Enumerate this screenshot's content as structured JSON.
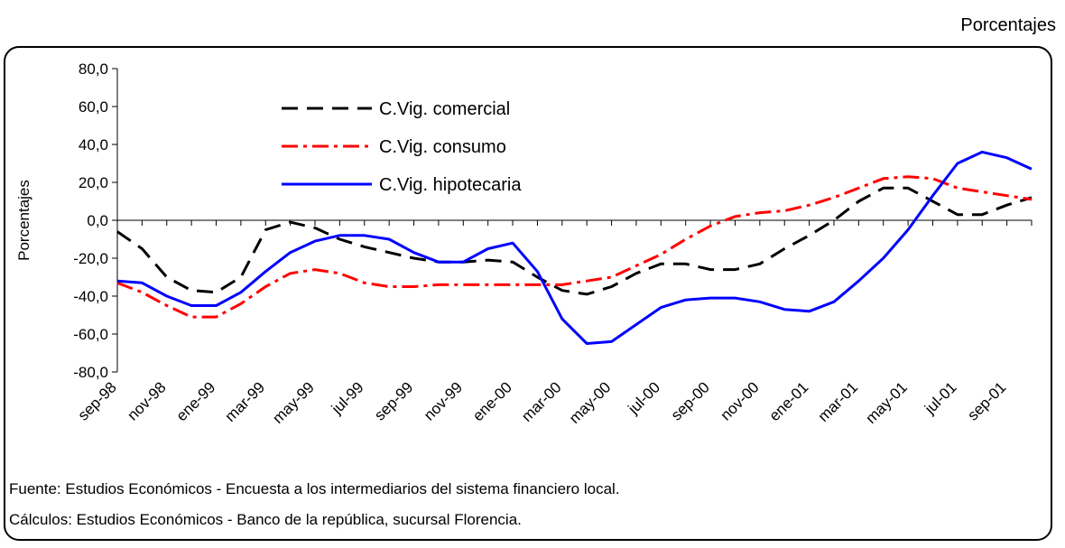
{
  "chart_data": {
    "type": "line",
    "unit_label": "Porcentajes",
    "y_label": "Porcentajes",
    "source": "Fuente:  Estudios Económicos - Encuesta a los intermediarios del sistema financiero local.",
    "calculations": "Cálculos:  Estudios Económicos - Banco de la república, sucursal Florencia.",
    "categories": [
      "sep-98",
      null,
      "nov-98",
      null,
      "ene-99",
      null,
      "mar-99",
      null,
      "may-99",
      null,
      "jul-99",
      null,
      "sep-99",
      null,
      "nov-99",
      null,
      "ene-00",
      null,
      "mar-00",
      null,
      "may-00",
      null,
      "jul-00",
      null,
      "sep-00",
      null,
      "nov-00",
      null,
      "ene-01",
      null,
      "mar-01",
      null,
      "may-01",
      null,
      "jul-01",
      null,
      "sep-01",
      null
    ],
    "series": [
      {
        "name": "C.Vig. comercial",
        "color": "#000000",
        "dash": "18 10",
        "values": [
          -6,
          -15,
          -30,
          -37,
          -38,
          -30,
          -5,
          -1,
          -4,
          -10,
          -14,
          -17,
          -20,
          -22,
          -22,
          -21,
          -22,
          -30,
          -37,
          -39,
          -35,
          -28,
          -23,
          -23,
          -26,
          -26,
          -23,
          -15,
          -8,
          0,
          10,
          17,
          17,
          10,
          3,
          3,
          8,
          12
        ]
      },
      {
        "name": "C.Vig. consumo",
        "color": "#ff0000",
        "dash": "18 6 4 6",
        "values": [
          -33,
          -38,
          -45,
          -51,
          -51,
          -44,
          -35,
          -28,
          -26,
          -28,
          -33,
          -35,
          -35,
          -34,
          -34,
          -34,
          -34,
          -34,
          -34,
          -32,
          -30,
          -24,
          -18,
          -10,
          -3,
          2,
          4,
          5,
          8,
          12,
          17,
          22,
          23,
          22,
          17,
          15,
          13,
          11
        ]
      },
      {
        "name": "C.Vig. hipotecaria",
        "color": "#0000ff",
        "dash": "none",
        "values": [
          -32,
          -33,
          -40,
          -45,
          -45,
          -38,
          -27,
          -17,
          -11,
          -8,
          -8,
          -10,
          -17,
          -22,
          -22,
          -15,
          -12,
          -27,
          -52,
          -65,
          -64,
          -55,
          -46,
          -42,
          -41,
          -41,
          -43,
          -47,
          -48,
          -43,
          -32,
          -20,
          -5,
          13,
          30,
          36,
          33,
          27
        ]
      }
    ],
    "ylim": [
      -80,
      80
    ],
    "yticks": [
      {
        "value": -80,
        "label": "-80,0"
      },
      {
        "value": -60,
        "label": "-60,0"
      },
      {
        "value": -40,
        "label": "-40,0"
      },
      {
        "value": -20,
        "label": "-20,0"
      },
      {
        "value": 0,
        "label": "0,0"
      },
      {
        "value": 20,
        "label": "20,0"
      },
      {
        "value": 40,
        "label": "40,0"
      },
      {
        "value": 60,
        "label": "60,0"
      },
      {
        "value": 80,
        "label": "80,0"
      }
    ]
  }
}
